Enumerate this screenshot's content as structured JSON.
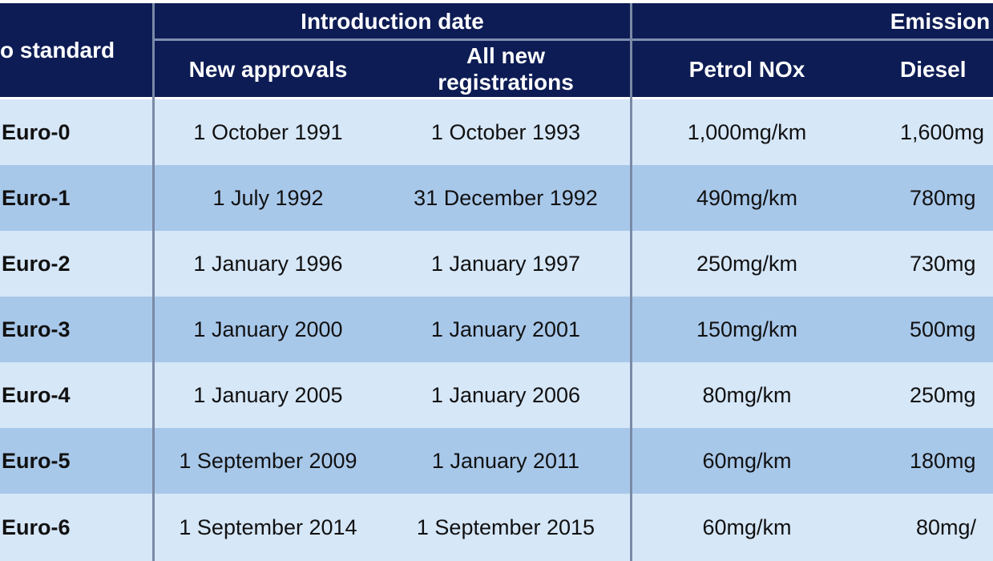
{
  "table": {
    "header": {
      "euro_standard": "o standard",
      "introduction_date": "Introduction date",
      "new_approvals": "New approvals",
      "all_new_line1": "All new",
      "all_new_line2": "registrations",
      "emissions": "Emission",
      "petrol_nox": "Petrol NOx",
      "diesel_nox": "Diesel "
    },
    "rows": [
      {
        "standard": "Euro-0",
        "new_approvals": "1 October 1991",
        "all_new": "1 October 1993",
        "petrol": "1,000mg/km",
        "diesel": "1,600mg"
      },
      {
        "standard": "Euro-1",
        "new_approvals": "1 July 1992",
        "all_new": "31 December 1992",
        "petrol": "490mg/km",
        "diesel": "780mg"
      },
      {
        "standard": "Euro-2",
        "new_approvals": "1 January 1996",
        "all_new": "1 January 1997",
        "petrol": "250mg/km",
        "diesel": "730mg"
      },
      {
        "standard": "Euro-3",
        "new_approvals": "1 January 2000",
        "all_new": "1 January 2001",
        "petrol": "150mg/km",
        "diesel": "500mg"
      },
      {
        "standard": "Euro-4",
        "new_approvals": "1 January 2005",
        "all_new": "1 January 2006",
        "petrol": "80mg/km",
        "diesel": "250mg"
      },
      {
        "standard": "Euro-5",
        "new_approvals": "1 September 2009",
        "all_new": "1 January 2011",
        "petrol": "60mg/km",
        "diesel": "180mg"
      },
      {
        "standard": "Euro-6",
        "new_approvals": "1 September 2014",
        "all_new": "1 September 2015",
        "petrol": "60mg/km",
        "diesel": "80mg/"
      }
    ]
  },
  "colors": {
    "header_bg": "#0d1c54",
    "row_light": "#d6e7f8",
    "row_dark": "#a8c8ea"
  }
}
